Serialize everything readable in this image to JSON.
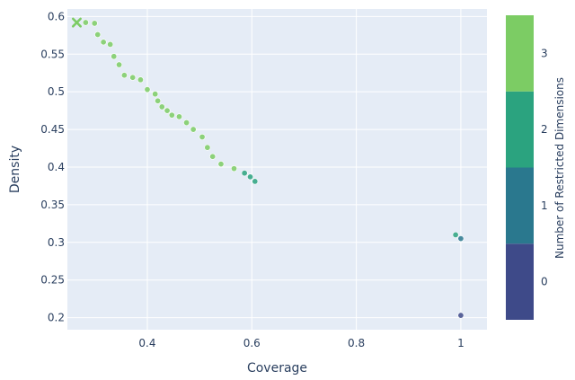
{
  "chart_data": {
    "type": "scatter",
    "xlabel": "Coverage",
    "ylabel": "Density",
    "xlim": [
      0.247,
      1.05
    ],
    "ylim": [
      0.184,
      0.61
    ],
    "x_ticks": [
      0.4,
      0.6,
      0.8,
      1
    ],
    "x_tick_labels": [
      "0.4",
      "0.6",
      "0.8",
      "1"
    ],
    "y_ticks": [
      0.2,
      0.25,
      0.3,
      0.35,
      0.4,
      0.45,
      0.5,
      0.55,
      0.6
    ],
    "y_tick_labels": [
      "0.2",
      "0.25",
      "0.3",
      "0.35",
      "0.4",
      "0.45",
      "0.5",
      "0.55",
      "0.6"
    ],
    "grid": true,
    "colorbar": {
      "title": "Number of Restricted Dimensions",
      "levels": [
        0,
        1,
        2,
        3
      ],
      "labels": [
        "0",
        "1",
        "2",
        "3"
      ],
      "colors": [
        "#3e4a89",
        "#2a788e",
        "#2ba37f",
        "#7ccc64"
      ]
    },
    "selected_point": {
      "x": 0.265,
      "y": 0.592,
      "dims": 3
    },
    "points": [
      {
        "x": 0.265,
        "y": 0.592,
        "dims": 3
      },
      {
        "x": 0.282,
        "y": 0.592,
        "dims": 3
      },
      {
        "x": 0.299,
        "y": 0.591,
        "dims": 3
      },
      {
        "x": 0.305,
        "y": 0.576,
        "dims": 3
      },
      {
        "x": 0.316,
        "y": 0.566,
        "dims": 3
      },
      {
        "x": 0.329,
        "y": 0.563,
        "dims": 3
      },
      {
        "x": 0.336,
        "y": 0.547,
        "dims": 3
      },
      {
        "x": 0.346,
        "y": 0.536,
        "dims": 3
      },
      {
        "x": 0.356,
        "y": 0.522,
        "dims": 3
      },
      {
        "x": 0.372,
        "y": 0.519,
        "dims": 3
      },
      {
        "x": 0.387,
        "y": 0.516,
        "dims": 3
      },
      {
        "x": 0.4,
        "y": 0.503,
        "dims": 3
      },
      {
        "x": 0.415,
        "y": 0.497,
        "dims": 3
      },
      {
        "x": 0.42,
        "y": 0.488,
        "dims": 3
      },
      {
        "x": 0.428,
        "y": 0.48,
        "dims": 3
      },
      {
        "x": 0.438,
        "y": 0.475,
        "dims": 3
      },
      {
        "x": 0.447,
        "y": 0.469,
        "dims": 3
      },
      {
        "x": 0.461,
        "y": 0.467,
        "dims": 3
      },
      {
        "x": 0.475,
        "y": 0.459,
        "dims": 3
      },
      {
        "x": 0.488,
        "y": 0.45,
        "dims": 3
      },
      {
        "x": 0.505,
        "y": 0.44,
        "dims": 3
      },
      {
        "x": 0.515,
        "y": 0.426,
        "dims": 3
      },
      {
        "x": 0.525,
        "y": 0.414,
        "dims": 3
      },
      {
        "x": 0.541,
        "y": 0.404,
        "dims": 3
      },
      {
        "x": 0.566,
        "y": 0.398,
        "dims": 3
      },
      {
        "x": 0.586,
        "y": 0.392,
        "dims": 2
      },
      {
        "x": 0.597,
        "y": 0.387,
        "dims": 2
      },
      {
        "x": 0.606,
        "y": 0.381,
        "dims": 2
      },
      {
        "x": 0.99,
        "y": 0.31,
        "dims": 2
      },
      {
        "x": 1.0,
        "y": 0.305,
        "dims": 1
      },
      {
        "x": 1.0,
        "y": 0.203,
        "dims": 0
      }
    ]
  }
}
